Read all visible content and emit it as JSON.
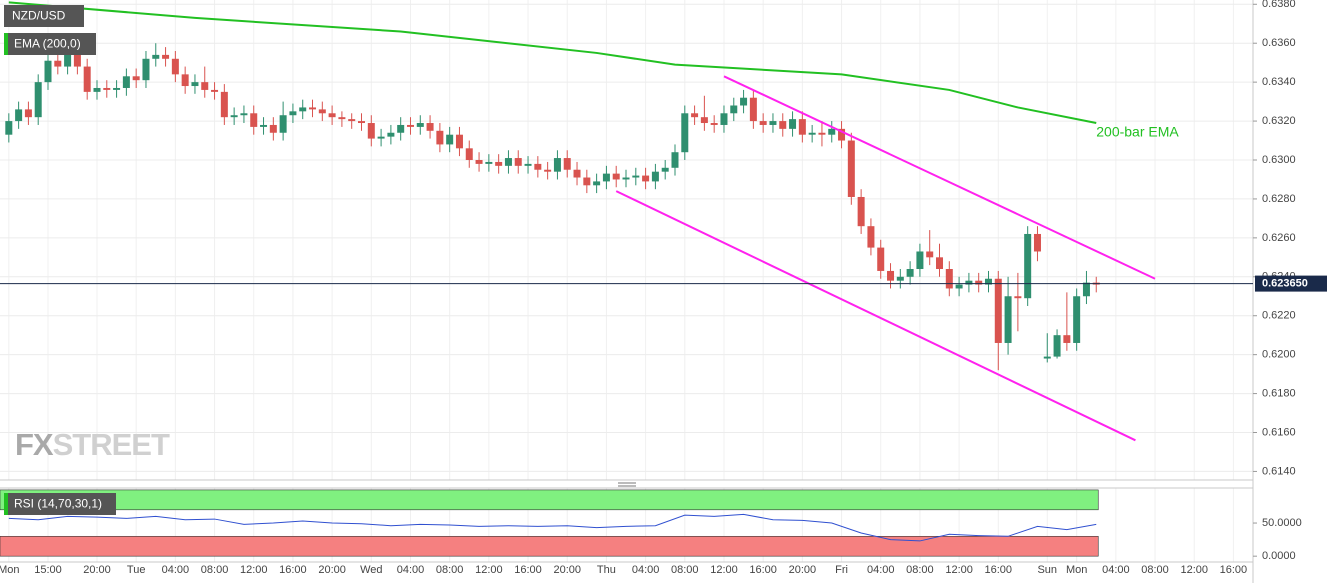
{
  "chart_data": [
    {
      "type": "candlestick",
      "title": "NZD/USD",
      "up_color": "#2f8f6f",
      "down_color": "#d9534f",
      "x": [
        -4,
        -3,
        -2,
        -1,
        0,
        1,
        2,
        3,
        4,
        5,
        6,
        7,
        8,
        9,
        10,
        11,
        12,
        13,
        14,
        15,
        16,
        17,
        18,
        19,
        20,
        21,
        22,
        23,
        24,
        25,
        26,
        27,
        28,
        29,
        30,
        31,
        32,
        33,
        34,
        35,
        36,
        37,
        38,
        39,
        40,
        41,
        42,
        43,
        44,
        45,
        46,
        47,
        48,
        49,
        50,
        51,
        52,
        53,
        54,
        55,
        56,
        57,
        58,
        59,
        60,
        61,
        62,
        63,
        64,
        65,
        66,
        67,
        68,
        69,
        70,
        71,
        72,
        73,
        74,
        75,
        76,
        77,
        78,
        79,
        80,
        81,
        82,
        83,
        84,
        85,
        86,
        87,
        88,
        89,
        90,
        91,
        92,
        93,
        94,
        95,
        96,
        97,
        98,
        99,
        100,
        101,
        102,
        103,
        104,
        105,
        106,
        107
      ],
      "open": [
        0.6313,
        0.632,
        0.6326,
        0.6322,
        0.634,
        0.6351,
        0.6348,
        0.6355,
        0.6348,
        0.6335,
        0.6337,
        0.6336,
        0.6337,
        0.6343,
        0.6341,
        0.6352,
        0.6354,
        0.6352,
        0.6344,
        0.6338,
        0.634,
        0.6336,
        0.6335,
        0.6322,
        0.6323,
        0.6324,
        0.6317,
        0.6318,
        0.6314,
        0.6323,
        0.6325,
        0.6327,
        0.6326,
        0.6324,
        0.6322,
        0.6321,
        0.632,
        0.6319,
        0.6311,
        0.6312,
        0.6314,
        0.6318,
        0.6317,
        0.6319,
        0.6315,
        0.6308,
        0.6313,
        0.6306,
        0.63,
        0.6298,
        0.6299,
        0.6297,
        0.6301,
        0.6297,
        0.6298,
        0.6295,
        0.6294,
        0.6301,
        0.6295,
        0.6291,
        0.6287,
        0.6289,
        0.6293,
        0.629,
        0.6291,
        0.6292,
        0.6289,
        0.6294,
        0.6296,
        0.6304,
        0.6324,
        0.6322,
        0.6319,
        0.6318,
        0.6324,
        0.6328,
        0.6332,
        0.632,
        0.6318,
        0.632,
        0.6316,
        0.6321,
        0.6313,
        0.6314,
        0.6313,
        0.6316,
        0.631,
        0.6281,
        0.6266,
        0.6255,
        0.6243,
        0.6238,
        0.624,
        0.6244,
        0.6253,
        0.625,
        0.6244,
        0.6234,
        0.6236,
        0.6238,
        0.6236,
        0.6239,
        0.6206,
        0.623,
        0.6229,
        0.6262,
        0.6198,
        0.6199,
        0.621,
        0.6206,
        0.623,
        0.6237
      ],
      "high": [
        0.6324,
        0.633,
        0.633,
        0.6344,
        0.6355,
        0.6355,
        0.6359,
        0.6359,
        0.6352,
        0.6341,
        0.6341,
        0.6341,
        0.6347,
        0.6347,
        0.6356,
        0.636,
        0.6358,
        0.6356,
        0.6348,
        0.6344,
        0.6348,
        0.634,
        0.6339,
        0.6327,
        0.6328,
        0.6328,
        0.6322,
        0.6322,
        0.633,
        0.6329,
        0.6331,
        0.6331,
        0.633,
        0.6328,
        0.6325,
        0.6324,
        0.6324,
        0.6323,
        0.6316,
        0.6318,
        0.6322,
        0.6322,
        0.6323,
        0.6323,
        0.6319,
        0.6317,
        0.6317,
        0.631,
        0.6304,
        0.6303,
        0.6303,
        0.6305,
        0.6305,
        0.6302,
        0.6302,
        0.6299,
        0.6305,
        0.6305,
        0.6299,
        0.6295,
        0.6293,
        0.6297,
        0.6297,
        0.6295,
        0.6296,
        0.6296,
        0.6298,
        0.63,
        0.6308,
        0.6328,
        0.6328,
        0.6333,
        0.6323,
        0.6328,
        0.6332,
        0.6336,
        0.6336,
        0.6324,
        0.6324,
        0.6324,
        0.6325,
        0.6325,
        0.6318,
        0.632,
        0.632,
        0.632,
        0.6314,
        0.6285,
        0.627,
        0.6259,
        0.6247,
        0.6244,
        0.6248,
        0.6257,
        0.6264,
        0.6257,
        0.6248,
        0.624,
        0.6242,
        0.6242,
        0.6243,
        0.6243,
        0.624,
        0.6242,
        0.6266,
        0.6266,
        0.6211,
        0.6213,
        0.6232,
        0.6234,
        0.6243,
        0.624
      ],
      "low": [
        0.6309,
        0.6316,
        0.6318,
        0.6318,
        0.6336,
        0.6344,
        0.6344,
        0.6344,
        0.6331,
        0.6331,
        0.6332,
        0.6332,
        0.6333,
        0.6337,
        0.6337,
        0.6348,
        0.6348,
        0.634,
        0.6334,
        0.6334,
        0.6332,
        0.6331,
        0.6318,
        0.6318,
        0.6319,
        0.6313,
        0.6313,
        0.631,
        0.631,
        0.6319,
        0.6321,
        0.6322,
        0.632,
        0.6318,
        0.6317,
        0.6316,
        0.6315,
        0.6307,
        0.6307,
        0.6308,
        0.631,
        0.6313,
        0.6313,
        0.6311,
        0.6304,
        0.6304,
        0.6302,
        0.6296,
        0.6294,
        0.6294,
        0.6293,
        0.6293,
        0.6293,
        0.6293,
        0.6291,
        0.629,
        0.629,
        0.6291,
        0.6287,
        0.6283,
        0.6283,
        0.6285,
        0.6286,
        0.6286,
        0.6287,
        0.6285,
        0.6285,
        0.629,
        0.6292,
        0.63,
        0.6318,
        0.6315,
        0.6314,
        0.6314,
        0.632,
        0.6324,
        0.6316,
        0.6314,
        0.6314,
        0.6312,
        0.6312,
        0.6309,
        0.6309,
        0.6307,
        0.6309,
        0.6306,
        0.6277,
        0.6262,
        0.6251,
        0.6239,
        0.6234,
        0.6234,
        0.6236,
        0.624,
        0.6246,
        0.624,
        0.623,
        0.623,
        0.6232,
        0.6232,
        0.6232,
        0.6192,
        0.62,
        0.6212,
        0.6225,
        0.6248,
        0.6196,
        0.6198,
        0.6202,
        0.6202,
        0.6226,
        0.6232
      ],
      "close": [
        0.632,
        0.6326,
        0.6322,
        0.634,
        0.6351,
        0.6348,
        0.6355,
        0.6348,
        0.6335,
        0.6337,
        0.6336,
        0.6337,
        0.6343,
        0.6341,
        0.6352,
        0.6354,
        0.6352,
        0.6344,
        0.6338,
        0.634,
        0.6336,
        0.6335,
        0.6322,
        0.6323,
        0.6324,
        0.6317,
        0.6318,
        0.6314,
        0.6323,
        0.6325,
        0.6327,
        0.6326,
        0.6324,
        0.6322,
        0.6321,
        0.632,
        0.6319,
        0.6311,
        0.6312,
        0.6314,
        0.6318,
        0.6317,
        0.6319,
        0.6315,
        0.6308,
        0.6313,
        0.6306,
        0.63,
        0.6298,
        0.6299,
        0.6297,
        0.6301,
        0.6297,
        0.6298,
        0.6295,
        0.6294,
        0.6301,
        0.6295,
        0.6291,
        0.6287,
        0.6289,
        0.6293,
        0.629,
        0.6291,
        0.6292,
        0.6289,
        0.6294,
        0.6296,
        0.6304,
        0.6324,
        0.6322,
        0.6319,
        0.6318,
        0.6324,
        0.6328,
        0.6332,
        0.632,
        0.6318,
        0.632,
        0.6316,
        0.6321,
        0.6313,
        0.6314,
        0.6313,
        0.6316,
        0.631,
        0.6281,
        0.6266,
        0.6255,
        0.6243,
        0.6238,
        0.624,
        0.6244,
        0.6253,
        0.625,
        0.6244,
        0.6234,
        0.6236,
        0.6238,
        0.6236,
        0.6239,
        0.6206,
        0.623,
        0.6229,
        0.6262,
        0.6253,
        0.6199,
        0.621,
        0.6206,
        0.623,
        0.6237,
        0.6236
      ],
      "series": [
        {
          "name": "EMA (200,0)",
          "color": "#22c022",
          "annotation": "200-bar EMA",
          "x": [
            -4,
            15,
            36,
            56,
            64,
            81,
            92,
            99,
            107
          ],
          "values": [
            0.6381,
            0.6373,
            0.6366,
            0.6355,
            0.6349,
            0.6344,
            0.6336,
            0.6327,
            0.6319
          ]
        }
      ],
      "trendlines": [
        {
          "color": "#ff22ee",
          "x": [
            69,
            113
          ],
          "values": [
            0.6343,
            0.6239
          ]
        },
        {
          "color": "#ff22ee",
          "x": [
            58,
            111
          ],
          "values": [
            0.6284,
            0.6156
          ]
        }
      ],
      "current_price": {
        "value": 0.62365,
        "label": "0.623650"
      },
      "watermark": [
        "FX",
        "STREET"
      ],
      "xlim": [
        -4.9,
        123
      ],
      "ylim": [
        0.61356,
        0.63822
      ],
      "yticks": [
        {
          "value": 0.614,
          "label": "0.6140"
        },
        {
          "value": 0.616,
          "label": "0.6160"
        },
        {
          "value": 0.618,
          "label": "0.6180"
        },
        {
          "value": 0.62,
          "label": "0.6200"
        },
        {
          "value": 0.622,
          "label": "0.6220"
        },
        {
          "value": 0.624,
          "label": "0.6240"
        },
        {
          "value": 0.626,
          "label": "0.6260"
        },
        {
          "value": 0.628,
          "label": "0.6280"
        },
        {
          "value": 0.63,
          "label": "0.6300"
        },
        {
          "value": 0.632,
          "label": "0.6320"
        },
        {
          "value": 0.634,
          "label": "0.6340"
        },
        {
          "value": 0.636,
          "label": "0.6360"
        },
        {
          "value": 0.638,
          "label": "0.6380"
        }
      ],
      "xticks": [
        {
          "value": -4,
          "label": "Mon"
        },
        {
          "value": 0,
          "label": "15:00"
        },
        {
          "value": 5,
          "label": "20:00"
        },
        {
          "value": 9,
          "label": "Tue"
        },
        {
          "value": 13,
          "label": "04:00"
        },
        {
          "value": 17,
          "label": "08:00"
        },
        {
          "value": 21,
          "label": "12:00"
        },
        {
          "value": 25,
          "label": "16:00"
        },
        {
          "value": 29,
          "label": "20:00"
        },
        {
          "value": 33,
          "label": "Wed"
        },
        {
          "value": 37,
          "label": "04:00"
        },
        {
          "value": 41,
          "label": "08:00"
        },
        {
          "value": 45,
          "label": "12:00"
        },
        {
          "value": 49,
          "label": "16:00"
        },
        {
          "value": 53,
          "label": "20:00"
        },
        {
          "value": 57,
          "label": "Thu"
        },
        {
          "value": 61,
          "label": "04:00"
        },
        {
          "value": 65,
          "label": "08:00"
        },
        {
          "value": 69,
          "label": "12:00"
        },
        {
          "value": 73,
          "label": "16:00"
        },
        {
          "value": 77,
          "label": "20:00"
        },
        {
          "value": 81,
          "label": "Fri"
        },
        {
          "value": 85,
          "label": "04:00"
        },
        {
          "value": 89,
          "label": "08:00"
        },
        {
          "value": 93,
          "label": "12:00"
        },
        {
          "value": 97,
          "label": "16:00"
        },
        {
          "value": 102,
          "label": "Sun"
        },
        {
          "value": 105,
          "label": "Mon"
        },
        {
          "value": 109,
          "label": "04:00"
        },
        {
          "value": 113,
          "label": "08:00"
        },
        {
          "value": 117,
          "label": "12:00"
        },
        {
          "value": 121,
          "label": "16:00"
        }
      ],
      "grid": true
    },
    {
      "type": "line",
      "title": "RSI (14,70,30,1)",
      "color": "#3050d0",
      "x": [
        -4,
        -1,
        2,
        5,
        8,
        11,
        14,
        17,
        20,
        23,
        26,
        29,
        32,
        35,
        38,
        41,
        44,
        47,
        50,
        53,
        56,
        59,
        62,
        65,
        68,
        71,
        74,
        77,
        80,
        83,
        86,
        89,
        92,
        95,
        98,
        101,
        104,
        107
      ],
      "values": [
        57,
        55,
        60,
        59,
        57,
        60,
        55,
        56,
        48,
        50,
        53,
        50,
        49,
        46,
        48,
        47,
        45,
        46,
        45,
        46,
        43,
        45,
        46,
        62,
        60,
        63,
        55,
        54,
        50,
        35,
        25,
        23,
        33,
        31,
        30,
        45,
        40,
        48
      ],
      "bands": [
        {
          "range": [
            70,
            100
          ],
          "color": "#80f080"
        },
        {
          "range": [
            0,
            30
          ],
          "color": "#f58080"
        }
      ],
      "ylim": [
        -8.8,
        102.9
      ],
      "yticks": [
        {
          "value": 50,
          "label": "50.0000"
        },
        {
          "value": 0,
          "label": "0.0000"
        }
      ]
    }
  ]
}
